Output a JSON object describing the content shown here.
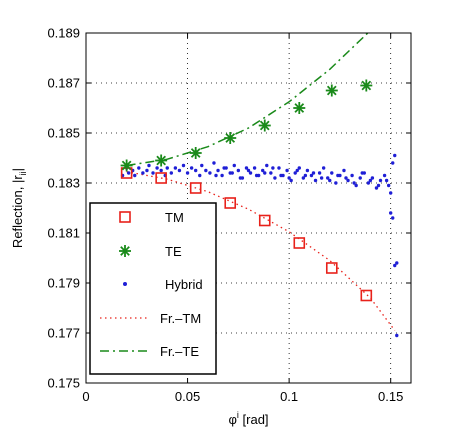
{
  "chart_data": {
    "type": "scatter",
    "title": "",
    "xlabel_main": "φ",
    "xlabel_sup": "i",
    "xlabel_rest": " [rad]",
    "ylabel_main": "Reflection, |r",
    "ylabel_sub": "ii",
    "ylabel_end": "|",
    "xlim": [
      0,
      0.16
    ],
    "ylim": [
      0.175,
      0.189
    ],
    "x_ticks": [
      0,
      0.05,
      0.1,
      0.15
    ],
    "x_tick_labels": [
      "0",
      "0.05",
      "0.1",
      "0.15"
    ],
    "y_ticks": [
      0.175,
      0.177,
      0.179,
      0.181,
      0.183,
      0.185,
      0.187,
      0.189
    ],
    "y_tick_labels": [
      "0.175",
      "0.177",
      "0.179",
      "0.181",
      "0.183",
      "0.185",
      "0.187",
      "0.189"
    ],
    "grid": true,
    "legend_position": "bottom-left",
    "series": [
      {
        "name": "TM",
        "marker": "square",
        "color": "#e8211a",
        "x": [
          0.02,
          0.037,
          0.054,
          0.071,
          0.088,
          0.105,
          0.121,
          0.138
        ],
        "y": [
          0.1834,
          0.1832,
          0.1828,
          0.1822,
          0.1815,
          0.1806,
          0.1796,
          0.1785
        ]
      },
      {
        "name": "TE",
        "marker": "asterisk",
        "color": "#1a8a1a",
        "x": [
          0.02,
          0.037,
          0.054,
          0.071,
          0.088,
          0.105,
          0.121,
          0.138
        ],
        "y": [
          0.1837,
          0.1839,
          0.1842,
          0.1848,
          0.1853,
          0.186,
          0.1867,
          0.1869
        ]
      },
      {
        "name": "Hybrid",
        "marker": "dot",
        "color": "#1f1fd6",
        "x": [
          0.018,
          0.02,
          0.021,
          0.023,
          0.024,
          0.026,
          0.028,
          0.03,
          0.031,
          0.033,
          0.035,
          0.037,
          0.039,
          0.04,
          0.042,
          0.044,
          0.046,
          0.048,
          0.05,
          0.052,
          0.054,
          0.056,
          0.057,
          0.059,
          0.061,
          0.063,
          0.065,
          0.067,
          0.069,
          0.071,
          0.073,
          0.075,
          0.077,
          0.079,
          0.081,
          0.083,
          0.085,
          0.087,
          0.089,
          0.091,
          0.093,
          0.095,
          0.097,
          0.099,
          0.101,
          0.103,
          0.105,
          0.107,
          0.109,
          0.111,
          0.113,
          0.115,
          0.117,
          0.119,
          0.121,
          0.123,
          0.125,
          0.127,
          0.129,
          0.131,
          0.133,
          0.135,
          0.137,
          0.139,
          0.141,
          0.143,
          0.145,
          0.147,
          0.149,
          0.15,
          0.151,
          0.152,
          0.153,
          0.064,
          0.068,
          0.072,
          0.076,
          0.08,
          0.084,
          0.088,
          0.092,
          0.096,
          0.1,
          0.104,
          0.108,
          0.112,
          0.116,
          0.12,
          0.124,
          0.128,
          0.132,
          0.136,
          0.14,
          0.144,
          0.148,
          0.152,
          0.151,
          0.15,
          0.153
        ],
        "y": [
          0.1833,
          0.1836,
          0.1834,
          0.1835,
          0.1833,
          0.1836,
          0.1834,
          0.1835,
          0.1837,
          0.1834,
          0.1836,
          0.1835,
          0.1833,
          0.1836,
          0.1834,
          0.1836,
          0.1835,
          0.1837,
          0.1834,
          0.1836,
          0.1835,
          0.1833,
          0.1837,
          0.1835,
          0.1834,
          0.1838,
          0.1835,
          0.1833,
          0.1836,
          0.1834,
          0.1837,
          0.1835,
          0.1832,
          0.1836,
          0.1834,
          0.1836,
          0.1833,
          0.1835,
          0.1837,
          0.1834,
          0.1832,
          0.1836,
          0.1833,
          0.1835,
          0.1831,
          0.1834,
          0.1836,
          0.1832,
          0.1835,
          0.1833,
          0.1831,
          0.1834,
          0.1836,
          0.1832,
          0.1834,
          0.183,
          0.1833,
          0.1835,
          0.1831,
          0.1833,
          0.1829,
          0.1832,
          0.1834,
          0.183,
          0.1832,
          0.1828,
          0.1831,
          0.1833,
          0.1829,
          0.1826,
          0.1816,
          0.1797,
          0.1769,
          0.1833,
          0.1836,
          0.1834,
          0.1832,
          0.1835,
          0.1833,
          0.1834,
          0.1836,
          0.1833,
          0.1832,
          0.1835,
          0.1833,
          0.1834,
          0.1832,
          0.1831,
          0.1833,
          0.1832,
          0.183,
          0.1834,
          0.1831,
          0.1829,
          0.1831,
          0.1841,
          0.1838,
          0.1818,
          0.1798
        ]
      },
      {
        "name": "Fr.–TM",
        "marker": "line-dotted",
        "color": "#e8211a",
        "x": [
          0.02,
          0.04,
          0.06,
          0.08,
          0.1,
          0.12,
          0.14,
          0.152
        ],
        "y": [
          0.18345,
          0.18315,
          0.18265,
          0.18195,
          0.18105,
          0.1799,
          0.1784,
          0.1771
        ]
      },
      {
        "name": "Fr.–TE",
        "marker": "line-dashdot",
        "color": "#1a8a1a",
        "x": [
          0.02,
          0.04,
          0.06,
          0.08,
          0.1,
          0.12,
          0.14,
          0.148
        ],
        "y": [
          0.1837,
          0.18395,
          0.18445,
          0.1852,
          0.18625,
          0.18755,
          0.1891,
          0.1898
        ]
      }
    ]
  }
}
